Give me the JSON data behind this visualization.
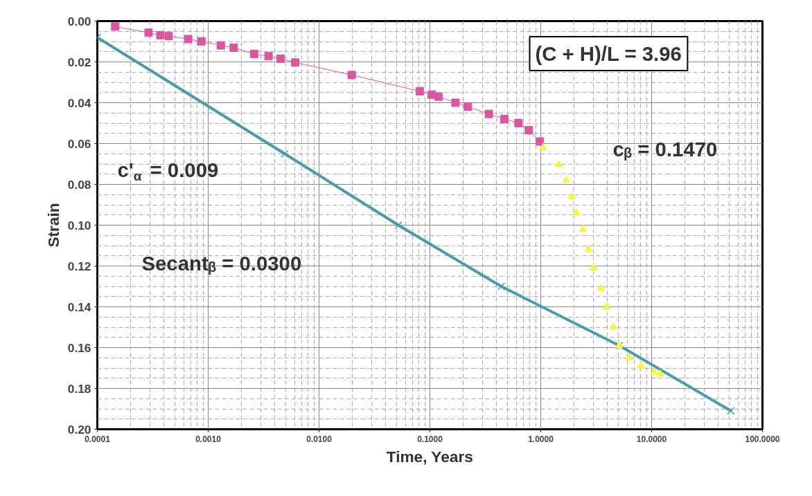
{
  "chart_data": {
    "type": "scatter",
    "xlabel": "Time, Years",
    "ylabel": "Strain",
    "log": "x",
    "grid": true,
    "xlim": [
      0.0001,
      100
    ],
    "ylim": [
      0.2,
      0.0
    ],
    "xticks": [
      {
        "value": 0.0001,
        "label": "0.0001"
      },
      {
        "value": 0.001,
        "label": "0.0010"
      },
      {
        "value": 0.01,
        "label": "0.0100"
      },
      {
        "value": 0.1,
        "label": "0.1000"
      },
      {
        "value": 1,
        "label": "1.0000"
      },
      {
        "value": 10,
        "label": "10.0000"
      },
      {
        "value": 100,
        "label": "100.0000"
      }
    ],
    "yticks": [
      {
        "value": 0.0,
        "label": "0.00"
      },
      {
        "value": 0.02,
        "label": "0.02"
      },
      {
        "value": 0.04,
        "label": "0.04"
      },
      {
        "value": 0.06,
        "label": "0.06"
      },
      {
        "value": 0.08,
        "label": "0.08"
      },
      {
        "value": 0.1,
        "label": "0.10"
      },
      {
        "value": 0.12,
        "label": "0.12"
      },
      {
        "value": 0.14,
        "label": "0.14"
      },
      {
        "value": 0.16,
        "label": "0.16"
      },
      {
        "value": 0.18,
        "label": "0.18"
      },
      {
        "value": 0.2,
        "label": "0.20"
      }
    ],
    "series": [
      {
        "type": "line",
        "color": "#4a9aa8",
        "marker": "cross",
        "x": [
          0.0001,
          0.0049,
          0.052,
          0.44,
          5.1,
          52
        ],
        "values": [
          0.008,
          0.065,
          0.1,
          0.13,
          0.159,
          0.191
        ]
      },
      {
        "type": "line",
        "color": "#d9579f",
        "marker": "square",
        "x": [
          0.000145,
          0.00029,
          0.00037,
          0.00044,
          0.00066,
          0.00087,
          0.0013,
          0.0017,
          0.0026,
          0.0035,
          0.0045,
          0.0061,
          0.0197,
          0.081,
          0.104,
          0.12,
          0.17,
          0.22,
          0.34,
          0.47,
          0.63,
          0.78,
          0.98
        ],
        "values": [
          0.0027,
          0.0057,
          0.0069,
          0.0073,
          0.0088,
          0.0099,
          0.0119,
          0.013,
          0.0161,
          0.0172,
          0.0184,
          0.0203,
          0.0264,
          0.0344,
          0.036,
          0.037,
          0.04,
          0.042,
          0.0455,
          0.048,
          0.05,
          0.0535,
          0.059
        ]
      },
      {
        "type": "scatter",
        "color": "#f5f54a",
        "marker": "triangle",
        "x": [
          1.05,
          1.45,
          1.7,
          1.9,
          2.1,
          2.4,
          2.7,
          3.0,
          3.5,
          3.9,
          4.5,
          5.1,
          6.3,
          8.0,
          10.6,
          12
        ],
        "values": [
          0.062,
          0.0704,
          0.078,
          0.086,
          0.094,
          0.102,
          0.112,
          0.121,
          0.131,
          0.14,
          0.15,
          0.159,
          0.165,
          0.169,
          0.172,
          0.173
        ]
      }
    ],
    "annotations": [
      "(C + H)/L = 3.96",
      "c'$_{α}$ = 0.009",
      "cᵦ = 0.1470",
      "Secantᵦ = 0.0300"
    ]
  }
}
